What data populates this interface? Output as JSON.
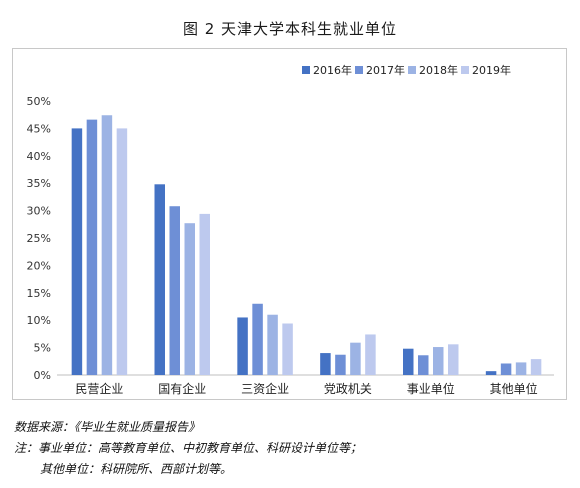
{
  "title": "图 2 天津大学本科生就业单位",
  "notes": {
    "source": "数据来源：《毕业生就业质量报告》",
    "note1": "注：事业单位：高等教育单位、中初教育单位、科研设计单位等；",
    "note2": "其他单位：科研院所、西部计划等。"
  },
  "colors": {
    "2016年": "#4472c4",
    "2017年": "#6e8fd6",
    "2018年": "#9cb3e4",
    "2019年": "#bdc9ee"
  },
  "chart_data": {
    "type": "bar",
    "title": "图 2 天津大学本科生就业单位",
    "categories": [
      "民营企业",
      "国有企业",
      "三资企业",
      "党政机关",
      "事业单位",
      "其他单位"
    ],
    "series": [
      {
        "name": "2016年",
        "values": [
          45,
          34.8,
          10.5,
          4.0,
          4.8,
          0.7
        ]
      },
      {
        "name": "2017年",
        "values": [
          46.6,
          30.8,
          13.0,
          3.7,
          3.6,
          2.1
        ]
      },
      {
        "name": "2018年",
        "values": [
          47.4,
          27.7,
          11.0,
          5.9,
          5.1,
          2.3
        ]
      },
      {
        "name": "2019年",
        "values": [
          45,
          29.4,
          9.4,
          7.4,
          5.6,
          2.9
        ]
      }
    ],
    "ylim": [
      0,
      50
    ],
    "yticks": [
      "0%",
      "5%",
      "10%",
      "15%",
      "20%",
      "25%",
      "30%",
      "35%",
      "40%",
      "45%",
      "50%"
    ],
    "legend_position": "top-right",
    "grid": false
  }
}
